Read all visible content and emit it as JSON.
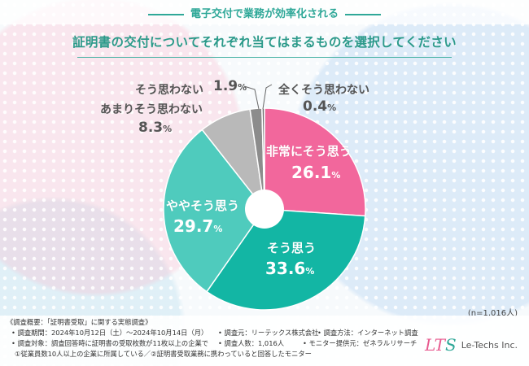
{
  "header": {
    "subtitle": "電子交付で業務が効率化される",
    "title": "証明書の交付についてそれぞれ当てはまるものを選択してください"
  },
  "chart_data": {
    "type": "pie",
    "title": "証明書の交付についてそれぞれ当てはまるものを選択してください",
    "series": [
      {
        "name": "非常にそう思う",
        "value": 26.1,
        "color": "#f2679c"
      },
      {
        "name": "そう思う",
        "value": 33.6,
        "color": "#13b6a4"
      },
      {
        "name": "ややそう思う",
        "value": 29.7,
        "color": "#4fcbbd"
      },
      {
        "name": "あまりそう思わない",
        "value": 8.3,
        "color": "#b9b9b9"
      },
      {
        "name": "そう思わない",
        "value": 1.9,
        "color": "#8c8c8c"
      },
      {
        "name": "全くそう思わない",
        "value": 0.4,
        "color": "#707070"
      }
    ],
    "unit": "%"
  },
  "sample_size": "(n=1,016人)",
  "footnotes": {
    "survey": "《調査概要：「証明書受取」に関する実態調査》",
    "period": "• 調査期間：2024年10月12日（土）～2024年10月14日（月）",
    "source": "• 調査元：リーテックス株式会社",
    "method": "• 調査方法：インターネット調査",
    "target": "• 調査対象：調査回答時に証明書の受取枚数が11枚以上の企業で",
    "count": "• 調査人数：1,016人",
    "provider": "• モニター提供元：ゼネラルリサーチ",
    "conditions": "①従業員数10人以上の企業に所属している／②証明書受取業務に携わっていると回答したモニター"
  },
  "logo": {
    "mark_l": "LT",
    "mark_s": "S",
    "name": "Le-Techs Inc."
  }
}
